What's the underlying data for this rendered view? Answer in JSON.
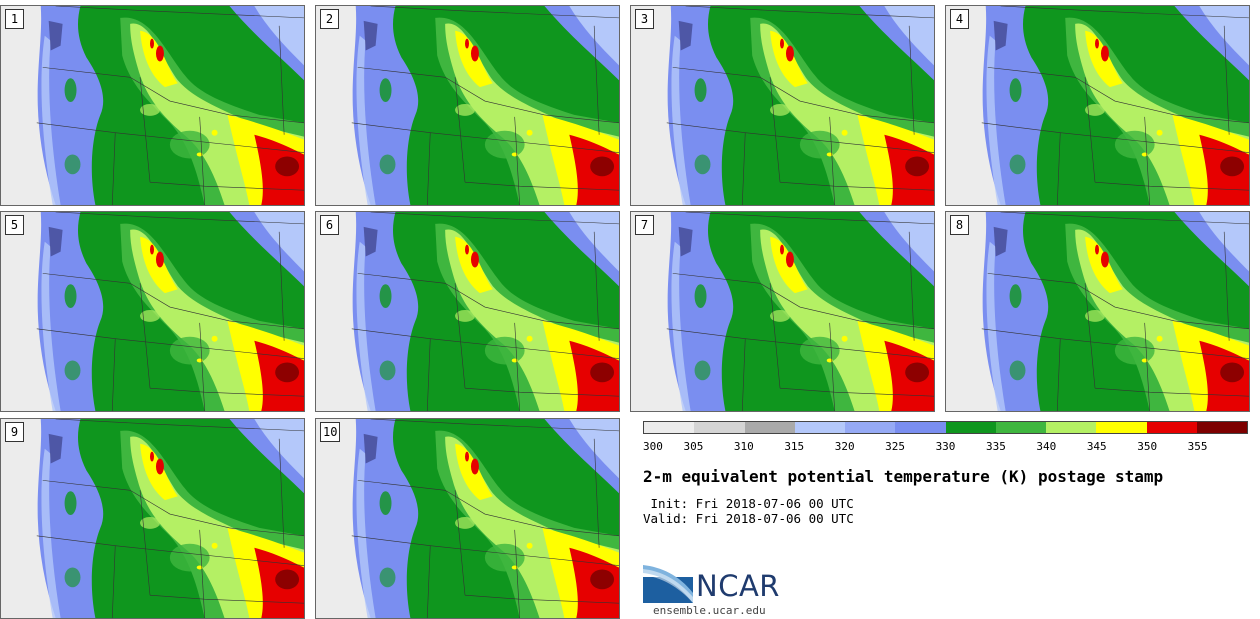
{
  "members": [
    "1",
    "2",
    "3",
    "4",
    "5",
    "6",
    "7",
    "8",
    "9",
    "10"
  ],
  "colorbar": {
    "colors": [
      "#ececec",
      "#d4d4d4",
      "#aaaaaa",
      "#b4c8fa",
      "#96aaf5",
      "#7a8ef0",
      "#0f961e",
      "#3fb63f",
      "#b4f064",
      "#ffff00",
      "#e60000",
      "#7d0000"
    ],
    "ticks": [
      "300",
      "305",
      "310",
      "315",
      "320",
      "325",
      "330",
      "335",
      "340",
      "345",
      "350",
      "355"
    ]
  },
  "title": "2-m equivalent potential temperature (K) postage stamp",
  "init_line": " Init: Fri 2018-07-06 00 UTC",
  "valid_line": "Valid: Fri 2018-07-06 00 UTC",
  "logo": {
    "name": "NCAR",
    "url": "ensemble.ucar.edu"
  }
}
